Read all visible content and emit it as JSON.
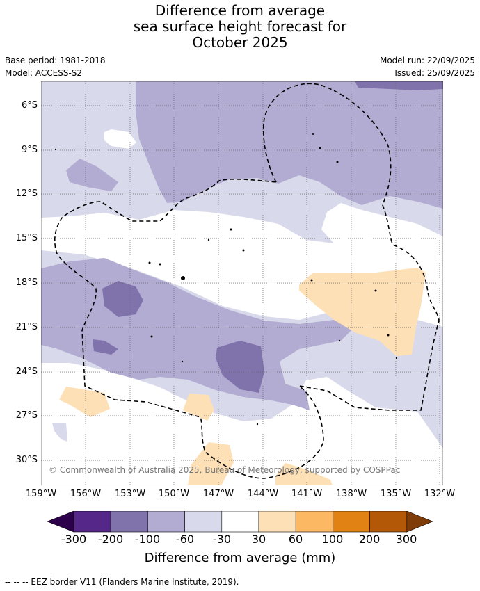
{
  "title": {
    "line1": "Difference from average",
    "line2": "sea surface height forecast for",
    "line3": "October 2025"
  },
  "meta_left": {
    "base_period": "Base period: 1981-2018",
    "model": "Model: ACCESS-S2"
  },
  "meta_right": {
    "model_run": "Model run: 22/09/2025",
    "issued": "Issued: 25/09/2025"
  },
  "map": {
    "lat_labels": [
      "6°S",
      "9°S",
      "12°S",
      "15°S",
      "18°S",
      "21°S",
      "24°S",
      "27°S",
      "30°S"
    ],
    "lon_labels": [
      "159°W",
      "156°W",
      "153°W",
      "150°W",
      "147°W",
      "144°W",
      "141°W",
      "138°W",
      "135°W",
      "132°W"
    ],
    "copyright": "© Commonwealth of Australia 2025, Bureau of Meteorology, supported by COSPPac"
  },
  "colorbar": {
    "ticks": [
      "-300",
      "-200",
      "-100",
      "-60",
      "-30",
      "30",
      "60",
      "100",
      "200",
      "300"
    ],
    "colors": [
      "#2d004b",
      "#542788",
      "#8073ac",
      "#b2abd2",
      "#d8daeb",
      "#ffffff",
      "#fee0b6",
      "#fdb863",
      "#e08214",
      "#b35806",
      "#7f3b08"
    ],
    "label": "Difference from average (mm)"
  },
  "footer": "--  --  -- EEZ border V11 (Flanders Marine Institute, 2019)."
}
